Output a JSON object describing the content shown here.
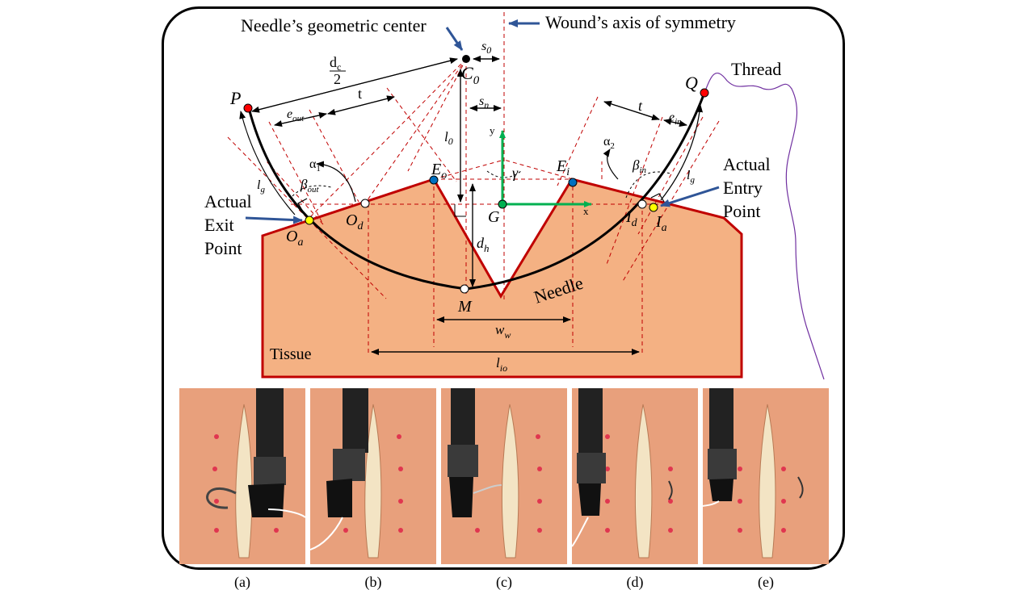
{
  "diagram": {
    "labels": {
      "needle_center": "Needle’s geometric center",
      "wound_axis": "Wound’s axis of symmetry",
      "thread": "Thread",
      "actual_entry_1": "Actual",
      "actual_entry_2": "Entry",
      "actual_entry_3": "Point",
      "actual_exit_1": "Actual",
      "actual_exit_2": "Exit",
      "actual_exit_3": "Point",
      "needle": "Needle",
      "tissue": "Tissue",
      "dc_num": "d",
      "dc_sub": "c",
      "dc_den": "2",
      "t_left": "t",
      "t_right": "t",
      "P": "P",
      "Q": "Q",
      "C": "C",
      "C_sub": "0",
      "s0": "s",
      "s0_sub": "0",
      "sn": "s",
      "sn_sub": "n",
      "l0": "l",
      "l0_sub": "0",
      "eout": "e",
      "eout_sub": "out",
      "ein": "e",
      "ein_sub": "in",
      "alpha1": "α",
      "alpha1_sub": "1",
      "alpha2": "α",
      "alpha2_sub": "2",
      "beta_out": "β",
      "beta_out_sub": "out",
      "beta_in": "β",
      "beta_in_sub": "in",
      "lg_left": "l",
      "lg_left_sub": "g",
      "lg_right": "l",
      "lg_right_sub": "g",
      "Eo": "E",
      "Eo_sub": "o",
      "Ei": "E",
      "Ei_sub": "i",
      "gamma": "γ",
      "G": "G",
      "x_axis": "x",
      "y_axis": "y",
      "Od": "O",
      "Od_sub": "d",
      "Oa": "O",
      "Oa_sub": "a",
      "Id": "I",
      "Id_sub": "d",
      "Ia": "I",
      "Ia_sub": "a",
      "dh": "d",
      "dh_sub": "h",
      "M": "M",
      "ww": "w",
      "ww_sub": "w",
      "lio": "l",
      "lio_sub": "io"
    },
    "colors": {
      "tissue_fill": "#f4b183",
      "tissue_edge": "#c00000",
      "construction": "#c00000",
      "needle": "#000000",
      "axes": "#00b050",
      "pointer": "#2f5597",
      "thread": "#7030a0",
      "tip_marker": "#ff0000",
      "entry_marker": "#ffff00",
      "edge_marker": "#0070c0"
    }
  },
  "photos": {
    "captions": [
      "(a)",
      "(b)",
      "(c)",
      "(d)",
      "(e)"
    ]
  }
}
